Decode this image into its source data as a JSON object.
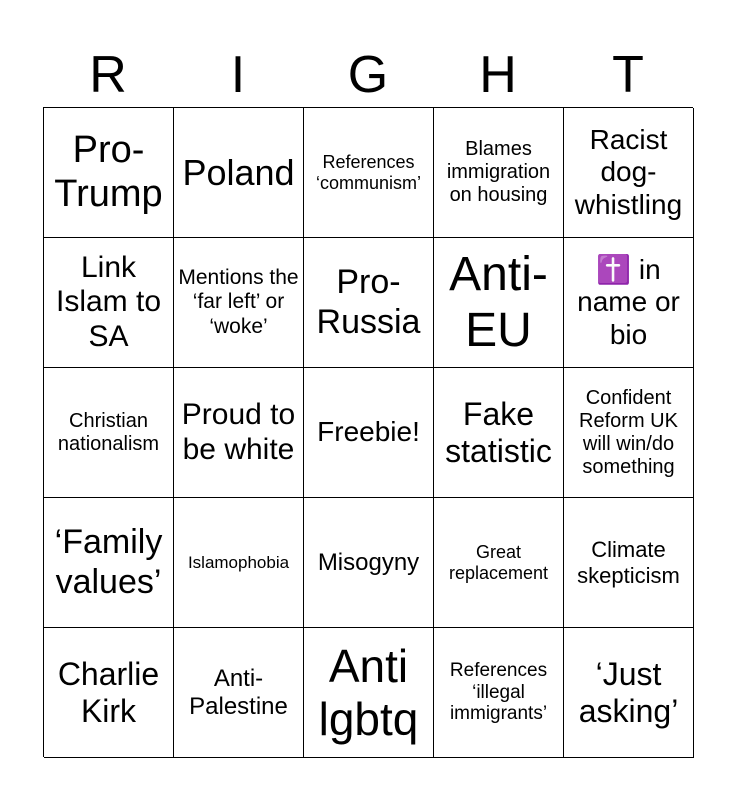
{
  "header": {
    "letters": [
      "R",
      "I",
      "G",
      "H",
      "T"
    ]
  },
  "grid": {
    "rows": [
      [
        "Pro-Trump",
        "Poland",
        "References ‘communism’",
        "Blames immigration on housing",
        "Racist dog-whistling"
      ],
      [
        "Link Islam to SA",
        "Mentions the ‘far left’ or ‘woke’",
        "Pro-Russia",
        "Anti-EU",
        "✝️ in name or bio"
      ],
      [
        "Christian nationalism",
        "Proud to be white",
        "Freebie!",
        "Fake statistic",
        "Confident Reform UK will win/do something"
      ],
      [
        "‘Family values’",
        "Islamophobia",
        "Misogyny",
        "Great replacement",
        "Climate skepticism"
      ],
      [
        "Charlie Kirk",
        "Anti-Palestine",
        "Anti lgbtq",
        "References ‘illegal immigrants’",
        "‘Just asking’"
      ]
    ]
  }
}
